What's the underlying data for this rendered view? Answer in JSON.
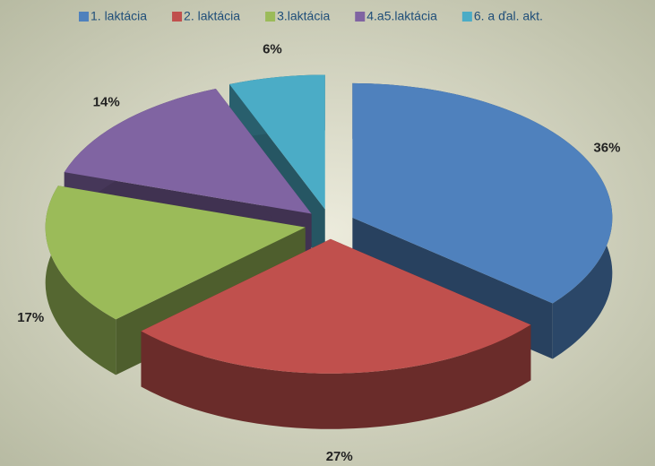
{
  "chart_data": {
    "type": "pie3d",
    "categories": [
      "1. laktácia",
      "2. laktácia",
      "3.laktácia",
      "4.a5.laktácia",
      "6. a ďal. akt."
    ],
    "values": [
      36,
      27,
      17,
      14,
      6
    ],
    "value_labels": [
      "36%",
      "27%",
      "17%",
      "14%",
      "6%"
    ],
    "colors": [
      "#4f81bd",
      "#c0504d",
      "#9bbb59",
      "#8064a2",
      "#4bacc6"
    ],
    "legend": "top"
  }
}
